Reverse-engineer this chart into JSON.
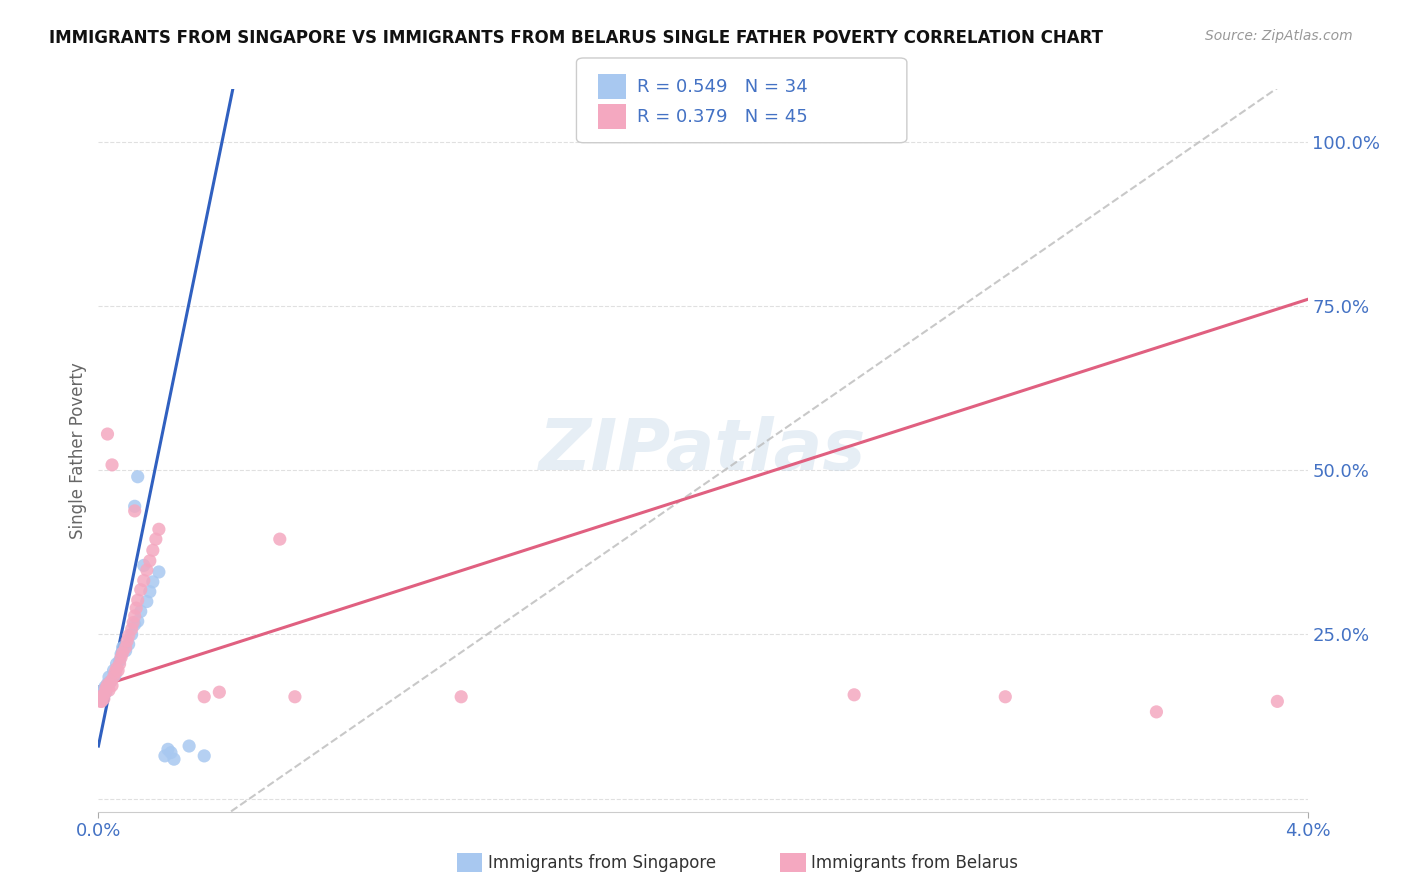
{
  "title": "IMMIGRANTS FROM SINGAPORE VS IMMIGRANTS FROM BELARUS SINGLE FATHER POVERTY CORRELATION CHART",
  "source": "Source: ZipAtlas.com",
  "ylabel": "Single Father Poverty",
  "x_min": 0.0,
  "x_max": 0.04,
  "y_min": -0.02,
  "y_max": 1.08,
  "right_ytick_vals": [
    0.0,
    0.25,
    0.5,
    0.75,
    1.0
  ],
  "right_yticklabels": [
    "",
    "25.0%",
    "50.0%",
    "75.0%",
    "100.0%"
  ],
  "x_ticks": [
    0.0,
    0.04
  ],
  "x_ticklabels": [
    "0.0%",
    "4.0%"
  ],
  "legend_r1": "R = 0.549   N = 34",
  "legend_r2": "R = 0.379   N = 45",
  "legend_label1": "Immigrants from Singapore",
  "legend_label2": "Immigrants from Belarus",
  "singapore_color": "#A8C8F0",
  "belarus_color": "#F4A8C0",
  "trend_blue": "#3060C0",
  "trend_pink": "#E06080",
  "dashed_line_color": "#BBBBBB",
  "watermark": "ZIPatlas",
  "background_color": "#FFFFFF",
  "grid_color": "#DDDDDD",
  "axis_label_color": "#4472C4",
  "title_color": "#111111",
  "singapore_points": [
    [
      0.0002,
      0.155
    ],
    [
      0.00025,
      0.16
    ],
    [
      0.0003,
      0.145
    ],
    [
      0.00035,
      0.165
    ],
    [
      0.0004,
      0.155
    ],
    [
      0.00045,
      0.17
    ],
    [
      0.0005,
      0.15
    ],
    [
      0.00055,
      0.175
    ],
    [
      0.0006,
      0.195
    ],
    [
      0.00065,
      0.185
    ],
    [
      0.0007,
      0.2
    ],
    [
      0.00075,
      0.19
    ],
    [
      0.0008,
      0.21
    ],
    [
      0.00085,
      0.22
    ],
    [
      0.0009,
      0.215
    ],
    [
      0.00095,
      0.225
    ],
    [
      0.001,
      0.23
    ],
    [
      0.0011,
      0.24
    ],
    [
      0.0012,
      0.26
    ],
    [
      0.0013,
      0.255
    ],
    [
      0.0014,
      0.27
    ],
    [
      0.0015,
      0.28
    ],
    [
      0.0016,
      0.295
    ],
    [
      0.0017,
      0.31
    ],
    [
      0.0018,
      0.32
    ],
    [
      0.0019,
      0.335
    ],
    [
      0.002,
      0.35
    ],
    [
      0.0021,
      0.06
    ],
    [
      0.0022,
      0.08
    ],
    [
      0.0023,
      0.07
    ],
    [
      0.0024,
      0.065
    ],
    [
      0.0025,
      0.43
    ],
    [
      0.0026,
      0.45
    ],
    [
      0.0027,
      0.065
    ]
  ],
  "belarus_points": [
    [
      5e-05,
      0.15
    ],
    [
      0.0001,
      0.145
    ],
    [
      0.00015,
      0.155
    ],
    [
      0.0002,
      0.15
    ],
    [
      0.00025,
      0.16
    ],
    [
      0.0003,
      0.165
    ],
    [
      0.00035,
      0.155
    ],
    [
      0.0004,
      0.16
    ],
    [
      0.0005,
      0.17
    ],
    [
      0.0006,
      0.175
    ],
    [
      0.00065,
      0.18
    ],
    [
      0.0007,
      0.185
    ],
    [
      0.0008,
      0.195
    ],
    [
      0.00085,
      0.2
    ],
    [
      0.0009,
      0.205
    ],
    [
      0.001,
      0.21
    ],
    [
      0.0011,
      0.215
    ],
    [
      0.00115,
      0.22
    ],
    [
      0.0012,
      0.225
    ],
    [
      0.00125,
      0.23
    ],
    [
      0.0013,
      0.235
    ],
    [
      0.0014,
      0.24
    ],
    [
      0.0015,
      0.26
    ],
    [
      0.0016,
      0.27
    ],
    [
      0.0017,
      0.28
    ],
    [
      0.0018,
      0.295
    ],
    [
      0.0019,
      0.31
    ],
    [
      0.002,
      0.32
    ],
    [
      0.0021,
      0.335
    ],
    [
      0.0022,
      0.35
    ],
    [
      0.0023,
      0.375
    ],
    [
      0.0024,
      0.39
    ],
    [
      0.0025,
      0.405
    ],
    [
      0.0012,
      0.44
    ],
    [
      0.0003,
      0.56
    ],
    [
      0.0035,
      0.155
    ],
    [
      0.004,
      0.16
    ],
    [
      0.0055,
      0.39
    ],
    [
      0.006,
      0.155
    ],
    [
      0.0065,
      0.155
    ],
    [
      0.012,
      0.155
    ],
    [
      0.025,
      0.155
    ],
    [
      0.03,
      0.155
    ],
    [
      0.035,
      0.13
    ],
    [
      0.039,
      0.145
    ]
  ]
}
